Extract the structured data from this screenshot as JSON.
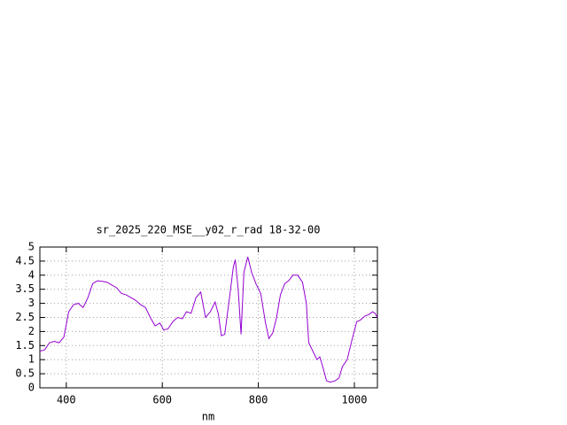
{
  "chart_data": {
    "type": "line",
    "title": "sr_2025_220_MSE__y02_r_rad 18-32-00",
    "x_label": "nm",
    "x": [
      345,
      355,
      365,
      375,
      385,
      395,
      405,
      415,
      425,
      435,
      445,
      455,
      465,
      475,
      485,
      495,
      505,
      515,
      525,
      535,
      545,
      555,
      565,
      575,
      585,
      595,
      603,
      612,
      622,
      632,
      642,
      650,
      660,
      670,
      680,
      690,
      700,
      710,
      717,
      723,
      730,
      740,
      748,
      752,
      758,
      764,
      770,
      778,
      786,
      795,
      805,
      815,
      822,
      830,
      838,
      846,
      855,
      863,
      872,
      882,
      892,
      900,
      905,
      915,
      922,
      928,
      935,
      942,
      950,
      960,
      968,
      975,
      985,
      995,
      1005,
      1012,
      1022,
      1030,
      1038,
      1043,
      1048
    ],
    "values": [
      1.3,
      1.35,
      1.6,
      1.65,
      1.6,
      1.8,
      2.7,
      2.95,
      3.0,
      2.85,
      3.2,
      3.7,
      3.8,
      3.78,
      3.75,
      3.65,
      3.55,
      3.35,
      3.3,
      3.2,
      3.1,
      2.95,
      2.85,
      2.5,
      2.2,
      2.3,
      2.05,
      2.1,
      2.35,
      2.5,
      2.45,
      2.7,
      2.65,
      3.2,
      3.4,
      2.5,
      2.7,
      3.05,
      2.6,
      1.85,
      1.9,
      3.2,
      4.3,
      4.55,
      3.5,
      1.9,
      4.1,
      4.65,
      4.1,
      3.7,
      3.35,
      2.3,
      1.75,
      1.95,
      2.5,
      3.3,
      3.7,
      3.8,
      4.0,
      4.0,
      3.75,
      3.0,
      1.6,
      1.25,
      1.0,
      1.1,
      0.7,
      0.25,
      0.2,
      0.25,
      0.35,
      0.75,
      1.0,
      1.7,
      2.35,
      2.4,
      2.55,
      2.6,
      2.7,
      2.65,
      2.5
    ],
    "color": "#9400d3",
    "xlim": [
      345,
      1048
    ],
    "xticks": [
      400,
      600,
      800,
      1000
    ],
    "ylim": [
      0,
      5
    ],
    "yticks": [
      0,
      0.5,
      1,
      1.5,
      2,
      2.5,
      3,
      3.5,
      4,
      4.5,
      5
    ],
    "grid": true
  }
}
